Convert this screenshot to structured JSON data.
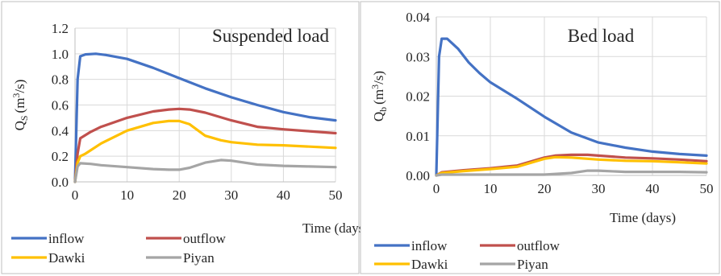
{
  "colors": {
    "inflow": "#4472C4",
    "outflow": "#C0504D",
    "Dawki": "#FFC000",
    "Piyan": "#A5A5A5",
    "grid": "#D9D9D9",
    "axis": "#BFBFBF",
    "text": "#262626",
    "border": "#BFBFBF"
  },
  "chart_data": [
    {
      "type": "line",
      "title": "Suspended load",
      "xlabel": "Time (days)",
      "ylabel": "Q_S (m³/s)",
      "ylabel_main": "Q",
      "ylabel_sub": "S",
      "ylabel_units": "(m",
      "ylabel_sup": "3",
      "ylabel_end": "/s)",
      "xlim": [
        0,
        50
      ],
      "ylim": [
        0,
        1.2
      ],
      "xticks": [
        "0",
        "10",
        "20",
        "30",
        "40",
        "50"
      ],
      "yticks": [
        "0.0",
        "0.2",
        "0.4",
        "0.6",
        "0.8",
        "1.0",
        "1.2"
      ],
      "grid": true,
      "legend_position": "bottom",
      "series": [
        {
          "name": "inflow",
          "x": [
            0,
            0.5,
            1,
            2,
            4,
            6,
            10,
            15,
            20,
            25,
            30,
            35,
            40,
            45,
            50
          ],
          "y": [
            0.0,
            0.8,
            0.98,
            0.995,
            1.0,
            0.99,
            0.96,
            0.89,
            0.81,
            0.73,
            0.66,
            0.6,
            0.545,
            0.505,
            0.48
          ]
        },
        {
          "name": "outflow",
          "x": [
            0,
            0.5,
            1,
            3,
            5,
            10,
            15,
            18,
            20,
            22,
            25,
            30,
            35,
            40,
            45,
            50
          ],
          "y": [
            0.0,
            0.22,
            0.34,
            0.39,
            0.43,
            0.5,
            0.55,
            0.565,
            0.57,
            0.565,
            0.54,
            0.48,
            0.43,
            0.41,
            0.395,
            0.38
          ]
        },
        {
          "name": "Dawki",
          "x": [
            0,
            0.5,
            1,
            2,
            5,
            10,
            15,
            18,
            20,
            22,
            25,
            28,
            30,
            35,
            40,
            45,
            50
          ],
          "y": [
            0.0,
            0.15,
            0.2,
            0.22,
            0.3,
            0.4,
            0.46,
            0.475,
            0.475,
            0.45,
            0.36,
            0.325,
            0.31,
            0.29,
            0.285,
            0.275,
            0.265
          ]
        },
        {
          "name": "Piyan",
          "x": [
            0,
            0.5,
            1,
            3,
            5,
            10,
            15,
            18,
            20,
            22,
            25,
            28,
            30,
            35,
            40,
            45,
            50
          ],
          "y": [
            0.0,
            0.12,
            0.145,
            0.14,
            0.13,
            0.115,
            0.1,
            0.095,
            0.095,
            0.11,
            0.15,
            0.17,
            0.165,
            0.135,
            0.125,
            0.12,
            0.115
          ]
        }
      ]
    },
    {
      "type": "line",
      "title": "Bed load",
      "xlabel": "Time (days)",
      "ylabel": "Q_b (m³/s)",
      "ylabel_main": "Q",
      "ylabel_sub": "b",
      "ylabel_units": "(m",
      "ylabel_sup": "3",
      "ylabel_end": "/s)",
      "xlim": [
        0,
        50
      ],
      "ylim": [
        0,
        0.04
      ],
      "xticks": [
        "0",
        "10",
        "20",
        "30",
        "40",
        "50"
      ],
      "yticks": [
        "0.00",
        "0.01",
        "0.02",
        "0.03",
        "0.04"
      ],
      "grid": true,
      "legend_position": "bottom",
      "series": [
        {
          "name": "inflow",
          "x": [
            0,
            0.5,
            1,
            2,
            4,
            6,
            8,
            10,
            15,
            20,
            25,
            30,
            35,
            40,
            45,
            50
          ],
          "y": [
            0.0,
            0.03,
            0.0345,
            0.0345,
            0.032,
            0.0285,
            0.0258,
            0.0235,
            0.0193,
            0.0148,
            0.0108,
            0.0083,
            0.007,
            0.006,
            0.0054,
            0.005
          ]
        },
        {
          "name": "outflow",
          "x": [
            0,
            1,
            5,
            10,
            15,
            20,
            22,
            25,
            28,
            30,
            35,
            40,
            45,
            50
          ],
          "y": [
            0.0,
            0.0008,
            0.0013,
            0.0018,
            0.0025,
            0.0045,
            0.005,
            0.0052,
            0.0052,
            0.005,
            0.0045,
            0.0043,
            0.004,
            0.0036
          ]
        },
        {
          "name": "Dawki",
          "x": [
            0,
            1,
            5,
            10,
            15,
            20,
            22,
            25,
            28,
            30,
            35,
            40,
            45,
            50
          ],
          "y": [
            0.0,
            0.0006,
            0.0011,
            0.0016,
            0.0022,
            0.0042,
            0.0046,
            0.0045,
            0.0042,
            0.004,
            0.0037,
            0.0036,
            0.0033,
            0.003
          ]
        },
        {
          "name": "Piyan",
          "x": [
            0,
            1,
            5,
            10,
            15,
            20,
            25,
            28,
            30,
            35,
            40,
            45,
            50
          ],
          "y": [
            0.0,
            0.0002,
            0.0002,
            0.0002,
            0.0002,
            0.0002,
            0.0006,
            0.0012,
            0.0012,
            0.0009,
            0.0009,
            0.0009,
            0.0008
          ]
        }
      ]
    }
  ]
}
